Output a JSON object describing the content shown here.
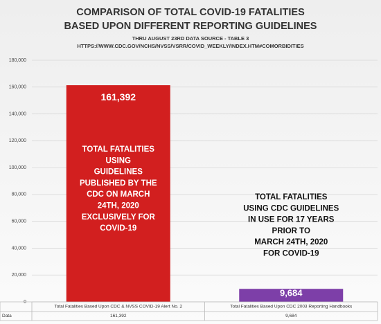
{
  "chart_data": {
    "type": "bar",
    "title_lines": [
      "COMPARISON OF TOTAL COVID-19 FATALITIES",
      "BASED UPON DIFFERENT REPORTING GUIDELINES"
    ],
    "subtitle_lines": [
      "THRU AUGUST 23RD DATA SOURCE - TABLE 3",
      "HTTPS://WWW.CDC.GOV/NCHS/NVSS/VSRR/COVID_WEEKLY/INDEX.HTM#COMORBIDITIES"
    ],
    "categories": [
      "Total Fatalities Based Upon CDC & NVSS COVID-19 Alert No. 2",
      "Total Fatalities Based Upon CDC 2003 Reporting Handbooks"
    ],
    "values": [
      161392,
      9684
    ],
    "value_labels": [
      "161,392",
      "9,684"
    ],
    "colors": [
      "#d21f1f",
      "#7d3fa8"
    ],
    "ylim": [
      0,
      180000
    ],
    "yticks": [
      0,
      {
        "value": 20000,
        "label": "20,000"
      },
      {
        "value": 40000,
        "label": "40,000"
      },
      {
        "value": 60000,
        "label": "60,000"
      },
      {
        "value": 80000,
        "label": "80,000"
      },
      {
        "value": 100000,
        "label": "100,000"
      },
      {
        "value": 120000,
        "label": "120,000"
      },
      {
        "value": 140000,
        "label": "140,000"
      },
      {
        "value": 160000,
        "label": "160,000"
      },
      {
        "value": 180000,
        "label": "180,000"
      }
    ],
    "grid": true,
    "table_row_label": "Data",
    "annotations": [
      {
        "lines": [
          "TOTAL FATALITIES",
          "USING",
          "GUIDELINES",
          "PUBLISHED BY THE",
          "CDC ON MARCH",
          "24TH, 2020",
          "EXCLUSIVELY FOR",
          "COVID-19"
        ],
        "color": "#ffffff"
      },
      {
        "lines": [
          "TOTAL FATALITIES",
          "USING CDC GUIDELINES",
          "IN USE FOR 17 YEARS",
          "PRIOR TO",
          "MARCH 24TH, 2020",
          "FOR COVID-19"
        ],
        "color": "#111111"
      }
    ]
  }
}
